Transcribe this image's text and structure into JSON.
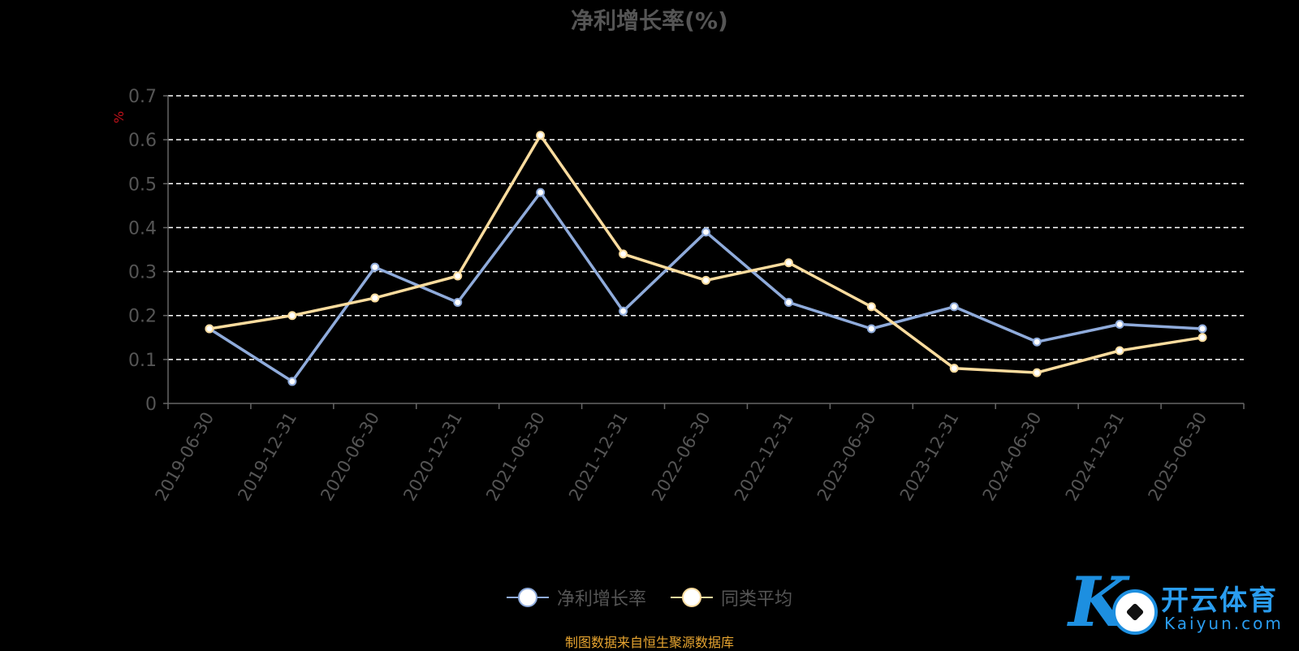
{
  "chart_data": {
    "type": "line",
    "title": "净利增长率(%)",
    "ylabel": "%",
    "ylim": [
      0,
      0.7
    ],
    "yticks": [
      "0",
      "0.1",
      "0.2",
      "0.3",
      "0.4",
      "0.5",
      "0.6",
      "0.7"
    ],
    "grid": true,
    "legend_position": "bottom",
    "categories": [
      "2019-06-30",
      "2019-12-31",
      "2020-06-30",
      "2020-12-31",
      "2021-06-30",
      "2021-12-31",
      "2022-06-30",
      "2022-12-31",
      "2023-06-30",
      "2023-12-31",
      "2024-06-30",
      "2024-12-31",
      "2025-06-30"
    ],
    "series": [
      {
        "name": "净利增长率",
        "color": "#8fabdb",
        "values": [
          0.17,
          0.05,
          0.31,
          0.23,
          0.48,
          0.21,
          0.39,
          0.23,
          0.17,
          0.22,
          0.14,
          0.18,
          0.17
        ]
      },
      {
        "name": "同类平均",
        "color": "#fbdc9e",
        "values": [
          0.17,
          0.2,
          0.24,
          0.29,
          0.61,
          0.34,
          0.28,
          0.32,
          0.22,
          0.08,
          0.07,
          0.12,
          0.15
        ]
      }
    ],
    "source_note": "制图数据来自恒生聚源数据库"
  },
  "logo": {
    "cn": "开云体育",
    "en": "Kaiyun.com",
    "mark": "K"
  },
  "colors": {
    "background": "#000000",
    "grid": "#ffffff",
    "axis": "#666666",
    "unit": "#c0121b"
  }
}
